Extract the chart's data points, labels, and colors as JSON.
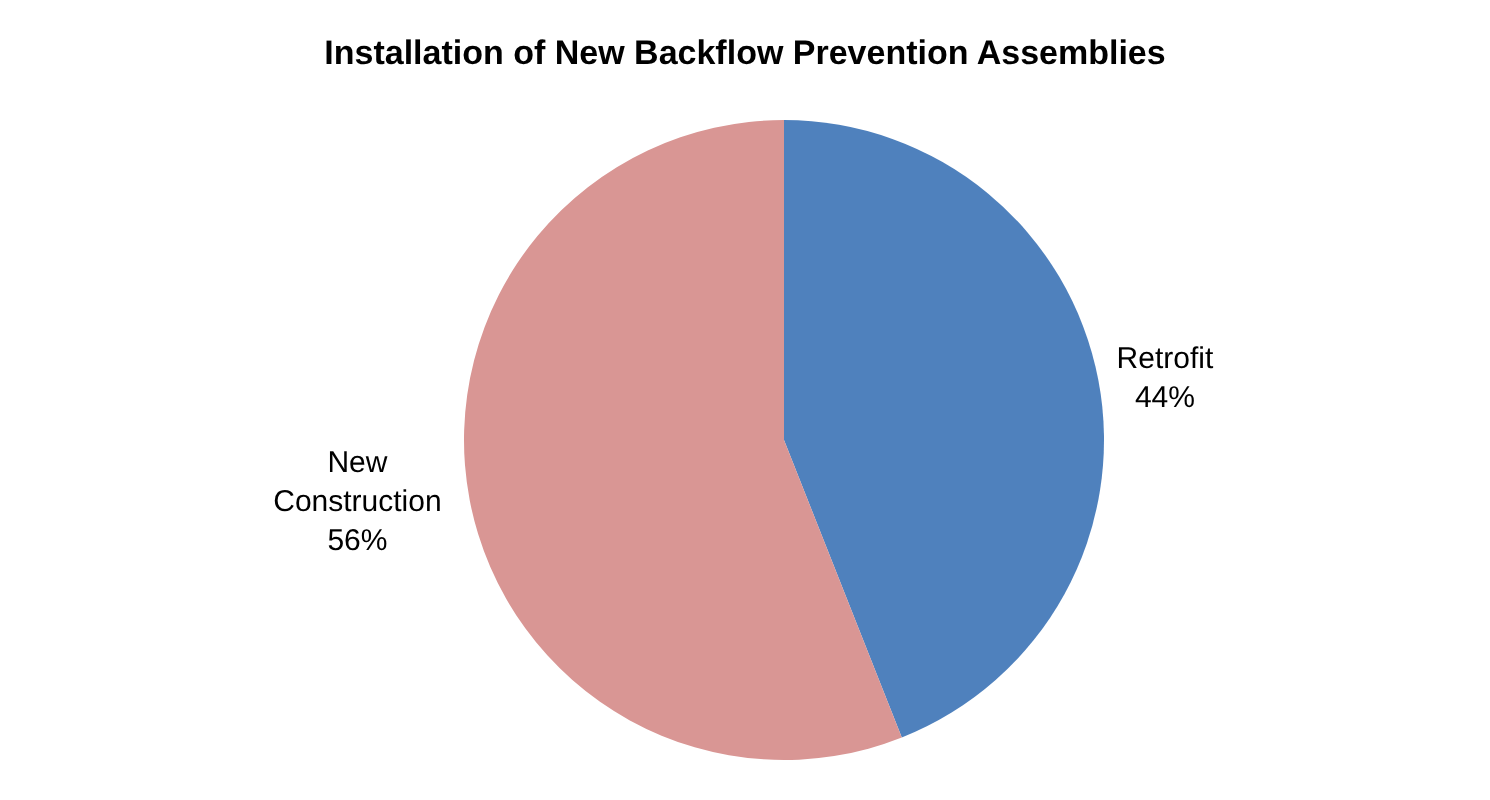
{
  "chart_data": {
    "type": "pie",
    "title": "Installation of New Backflow Prevention Assemblies",
    "categories": [
      "Retrofit",
      "New Construction"
    ],
    "values": [
      44,
      56
    ],
    "value_labels": [
      "44%",
      "56%"
    ],
    "colors": [
      "#4f81bd",
      "#d99694"
    ],
    "legend": false
  }
}
